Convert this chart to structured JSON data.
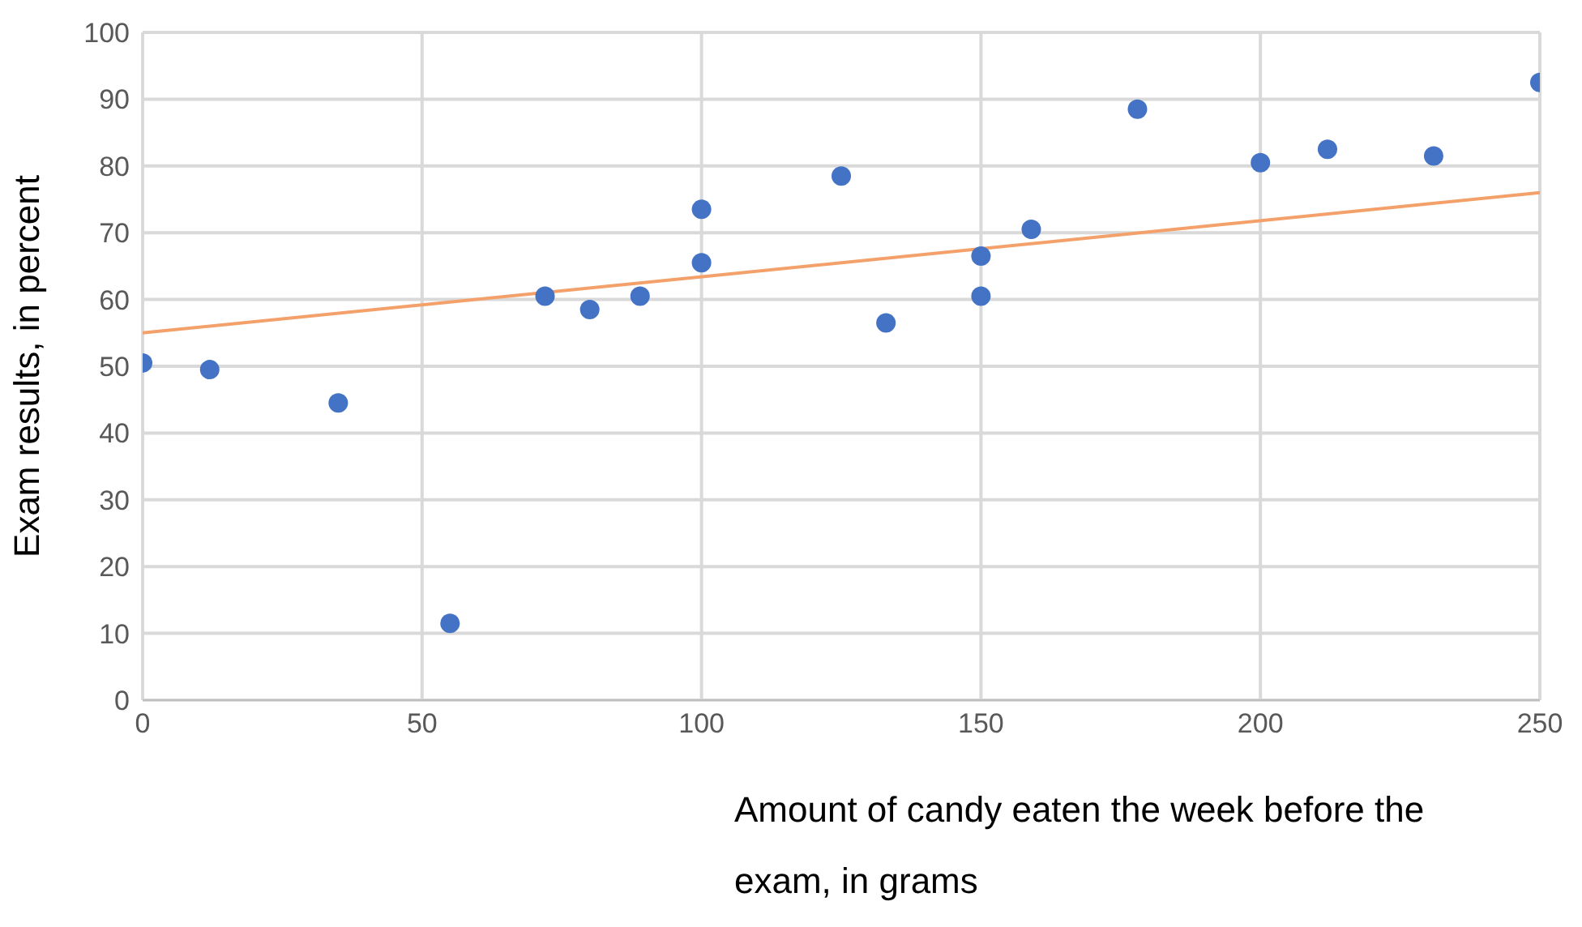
{
  "chart_data": {
    "type": "scatter",
    "xlabel": "Amount of candy eaten the week before the exam, in grams",
    "ylabel": "Exam results, in percent",
    "xlim": [
      0,
      250
    ],
    "xticks": [
      0,
      50,
      100,
      150,
      200,
      250
    ],
    "ylim": [
      0,
      100
    ],
    "yticks": [
      0,
      10,
      20,
      30,
      40,
      50,
      60,
      70,
      80,
      90,
      100
    ],
    "grid": true,
    "legend": false,
    "series": [
      {
        "color": "#4472c4",
        "marker": "circle",
        "x": [
          0,
          12,
          35,
          55,
          72,
          80,
          89,
          100,
          100,
          125,
          133,
          150,
          150,
          159,
          178,
          200,
          212,
          231,
          250
        ],
        "values": [
          50.5,
          49.5,
          44.5,
          11.5,
          60.5,
          58.5,
          60.5,
          73.5,
          65.5,
          78.5,
          56.5,
          66.5,
          60.5,
          70.5,
          88.5,
          80.5,
          82.5,
          81.5,
          92.5
        ]
      },
      {
        "type": "line",
        "marker": "none",
        "color": "#f4a06a",
        "x": [
          0,
          250
        ],
        "values": [
          55,
          76
        ]
      }
    ]
  }
}
